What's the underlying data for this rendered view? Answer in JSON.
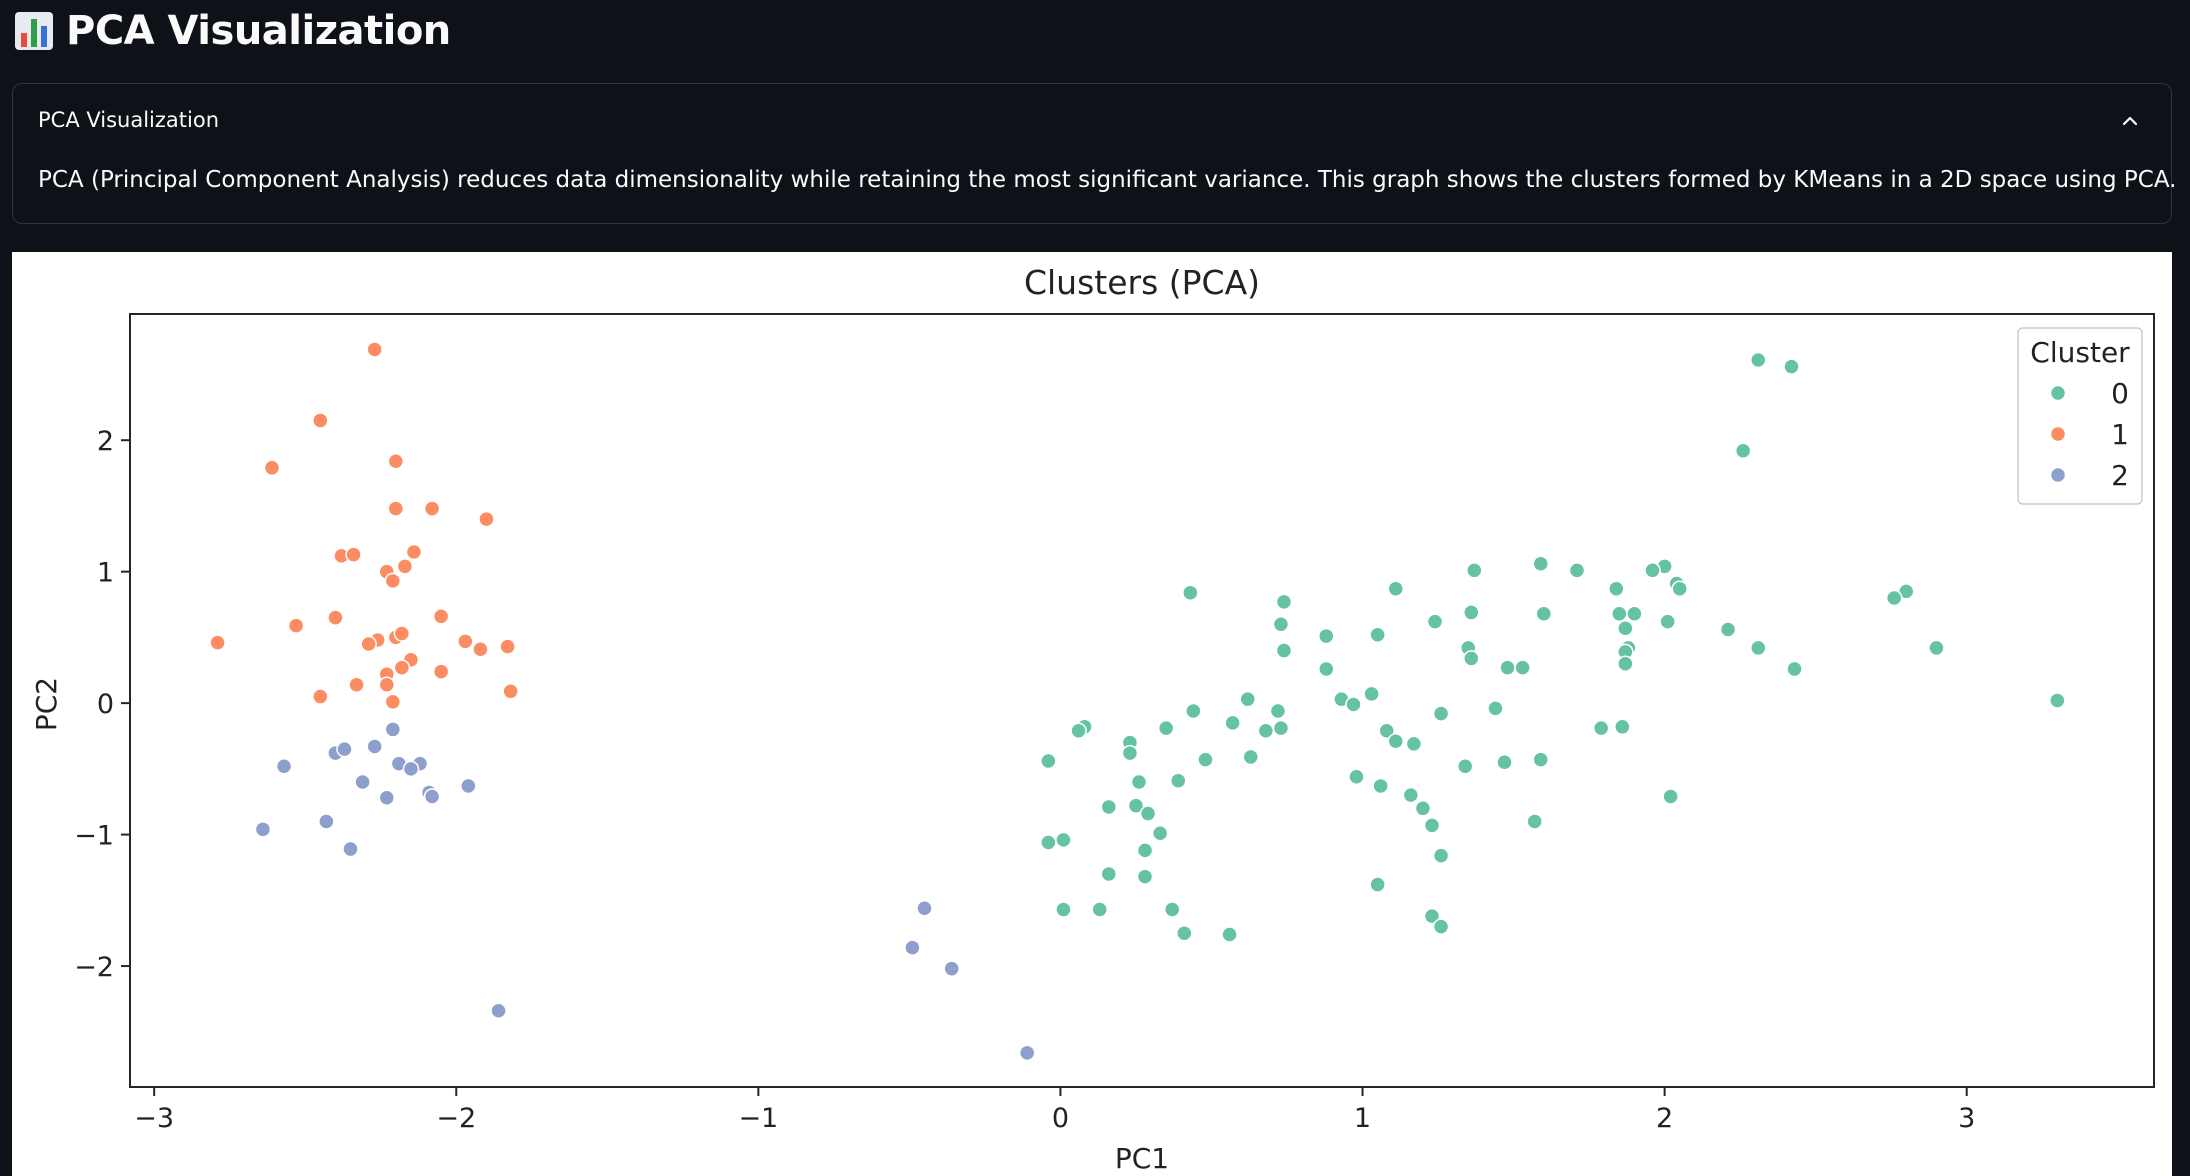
{
  "header": {
    "title": "PCA Visualization",
    "icon": "bar-chart-icon"
  },
  "expander": {
    "label": "PCA Visualization",
    "expanded": true,
    "toggle_icon": "chevron-up-icon",
    "description": "PCA (Principal Component Analysis) reduces data dimensionality while retaining the most significant variance. This graph shows the clusters formed by KMeans in a 2D space using PCA."
  },
  "chart_data": {
    "type": "scatter",
    "title": "Clusters (PCA)",
    "xlabel": "PC1",
    "ylabel": "PC2",
    "xlim": [
      -3.08,
      3.62
    ],
    "ylim": [
      -2.92,
      2.96
    ],
    "xticks": [
      -3,
      -2,
      -1,
      0,
      1,
      2,
      3
    ],
    "yticks": [
      -2,
      -1,
      0,
      1,
      2
    ],
    "xtick_labels": [
      "−3",
      "−2",
      "−1",
      "0",
      "1",
      "2",
      "3"
    ],
    "ytick_labels": [
      "−2",
      "−1",
      "0",
      "1",
      "2"
    ],
    "grid": false,
    "legend": {
      "title": "Cluster",
      "placement": "top-right",
      "entries": [
        "0",
        "1",
        "2"
      ]
    },
    "colors": {
      "0": "#66c2a5",
      "1": "#fc8d62",
      "2": "#8da0cb"
    },
    "series": [
      {
        "name": "0",
        "points": [
          [
            2.31,
            2.61
          ],
          [
            2.42,
            2.56
          ],
          [
            2.26,
            1.92
          ],
          [
            1.59,
            1.06
          ],
          [
            2.0,
            1.04
          ],
          [
            1.37,
            1.01
          ],
          [
            1.71,
            1.01
          ],
          [
            1.96,
            1.01
          ],
          [
            2.04,
            0.91
          ],
          [
            2.05,
            0.87
          ],
          [
            1.84,
            0.87
          ],
          [
            1.11,
            0.87
          ],
          [
            0.43,
            0.84
          ],
          [
            2.8,
            0.85
          ],
          [
            2.76,
            0.8
          ],
          [
            0.74,
            0.77
          ],
          [
            1.36,
            0.69
          ],
          [
            1.6,
            0.68
          ],
          [
            1.85,
            0.68
          ],
          [
            1.9,
            0.68
          ],
          [
            0.73,
            0.6
          ],
          [
            1.24,
            0.62
          ],
          [
            2.01,
            0.62
          ],
          [
            1.87,
            0.57
          ],
          [
            2.21,
            0.56
          ],
          [
            0.88,
            0.51
          ],
          [
            1.05,
            0.52
          ],
          [
            1.35,
            0.42
          ],
          [
            1.88,
            0.42
          ],
          [
            1.87,
            0.39
          ],
          [
            2.31,
            0.42
          ],
          [
            2.9,
            0.42
          ],
          [
            0.74,
            0.4
          ],
          [
            1.36,
            0.34
          ],
          [
            1.87,
            0.3
          ],
          [
            1.48,
            0.27
          ],
          [
            1.53,
            0.27
          ],
          [
            2.43,
            0.26
          ],
          [
            0.88,
            0.26
          ],
          [
            0.62,
            0.03
          ],
          [
            0.93,
            0.03
          ],
          [
            0.97,
            -0.01
          ],
          [
            1.03,
            0.07
          ],
          [
            1.44,
            -0.04
          ],
          [
            3.3,
            0.02
          ],
          [
            0.44,
            -0.06
          ],
          [
            0.72,
            -0.06
          ],
          [
            1.26,
            -0.08
          ],
          [
            0.57,
            -0.15
          ],
          [
            0.73,
            -0.19
          ],
          [
            0.68,
            -0.21
          ],
          [
            1.08,
            -0.21
          ],
          [
            0.35,
            -0.19
          ],
          [
            0.08,
            -0.18
          ],
          [
            0.06,
            -0.21
          ],
          [
            1.79,
            -0.19
          ],
          [
            1.86,
            -0.18
          ],
          [
            0.23,
            -0.3
          ],
          [
            1.11,
            -0.29
          ],
          [
            1.17,
            -0.31
          ],
          [
            0.23,
            -0.38
          ],
          [
            0.63,
            -0.41
          ],
          [
            0.48,
            -0.43
          ],
          [
            -0.04,
            -0.44
          ],
          [
            1.34,
            -0.48
          ],
          [
            1.47,
            -0.45
          ],
          [
            1.59,
            -0.43
          ],
          [
            0.26,
            -0.6
          ],
          [
            0.39,
            -0.59
          ],
          [
            0.98,
            -0.56
          ],
          [
            1.06,
            -0.63
          ],
          [
            1.16,
            -0.7
          ],
          [
            2.02,
            -0.71
          ],
          [
            0.16,
            -0.79
          ],
          [
            0.25,
            -0.78
          ],
          [
            0.29,
            -0.84
          ],
          [
            1.2,
            -0.8
          ],
          [
            1.23,
            -0.93
          ],
          [
            1.57,
            -0.9
          ],
          [
            0.33,
            -0.99
          ],
          [
            -0.04,
            -1.06
          ],
          [
            0.01,
            -1.04
          ],
          [
            0.28,
            -1.12
          ],
          [
            1.26,
            -1.16
          ],
          [
            0.16,
            -1.3
          ],
          [
            0.28,
            -1.32
          ],
          [
            1.05,
            -1.38
          ],
          [
            0.01,
            -1.57
          ],
          [
            0.13,
            -1.57
          ],
          [
            0.37,
            -1.57
          ],
          [
            1.23,
            -1.62
          ],
          [
            1.26,
            -1.7
          ],
          [
            0.41,
            -1.75
          ],
          [
            0.56,
            -1.76
          ]
        ]
      },
      {
        "name": "1",
        "points": [
          [
            -2.27,
            2.69
          ],
          [
            -2.45,
            2.15
          ],
          [
            -2.2,
            1.84
          ],
          [
            -2.61,
            1.79
          ],
          [
            -2.2,
            1.48
          ],
          [
            -2.08,
            1.48
          ],
          [
            -1.9,
            1.4
          ],
          [
            -2.38,
            1.12
          ],
          [
            -2.34,
            1.13
          ],
          [
            -2.14,
            1.15
          ],
          [
            -2.23,
            1.0
          ],
          [
            -2.17,
            1.04
          ],
          [
            -2.21,
            0.93
          ],
          [
            -2.4,
            0.65
          ],
          [
            -2.05,
            0.66
          ],
          [
            -2.53,
            0.59
          ],
          [
            -2.2,
            0.5
          ],
          [
            -2.18,
            0.53
          ],
          [
            -2.26,
            0.48
          ],
          [
            -2.29,
            0.45
          ],
          [
            -2.79,
            0.46
          ],
          [
            -1.97,
            0.47
          ],
          [
            -1.92,
            0.41
          ],
          [
            -1.83,
            0.43
          ],
          [
            -2.15,
            0.33
          ],
          [
            -2.18,
            0.27
          ],
          [
            -2.05,
            0.24
          ],
          [
            -2.23,
            0.22
          ],
          [
            -2.23,
            0.14
          ],
          [
            -2.33,
            0.14
          ],
          [
            -2.45,
            0.05
          ],
          [
            -1.82,
            0.09
          ],
          [
            -2.21,
            0.01
          ]
        ]
      },
      {
        "name": "2",
        "points": [
          [
            -2.21,
            -0.2
          ],
          [
            -2.27,
            -0.33
          ],
          [
            -2.4,
            -0.38
          ],
          [
            -2.37,
            -0.35
          ],
          [
            -2.57,
            -0.48
          ],
          [
            -2.19,
            -0.46
          ],
          [
            -2.12,
            -0.46
          ],
          [
            -2.15,
            -0.5
          ],
          [
            -2.31,
            -0.6
          ],
          [
            -1.96,
            -0.63
          ],
          [
            -2.09,
            -0.68
          ],
          [
            -2.08,
            -0.71
          ],
          [
            -2.23,
            -0.72
          ],
          [
            -2.43,
            -0.9
          ],
          [
            -2.64,
            -0.96
          ],
          [
            -2.35,
            -1.11
          ],
          [
            -1.86,
            -2.34
          ],
          [
            -0.45,
            -1.56
          ],
          [
            -0.49,
            -1.86
          ],
          [
            -0.36,
            -2.02
          ],
          [
            -0.11,
            -2.66
          ]
        ]
      }
    ]
  }
}
